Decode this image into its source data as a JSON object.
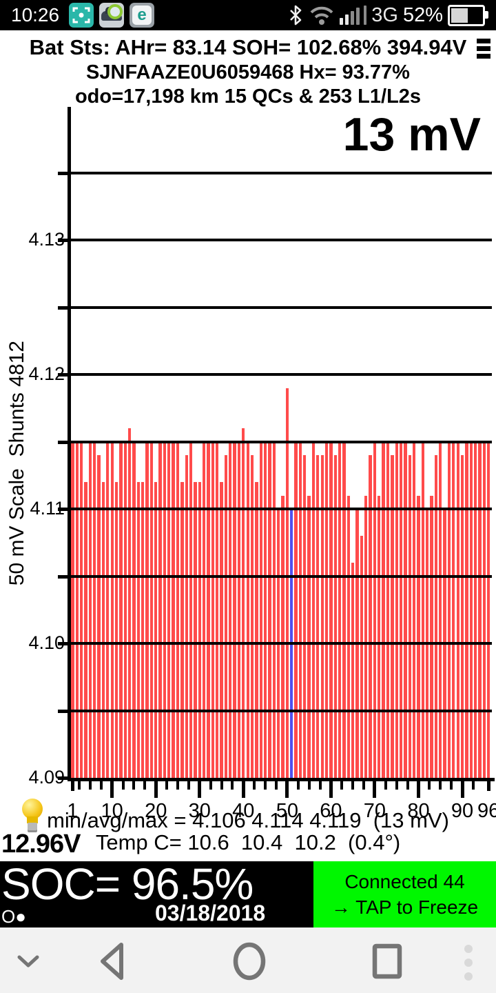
{
  "status_bar": {
    "time": "10:26",
    "app_icons": [
      "screen-capture-icon",
      "leafspy-app-icon",
      "eset-antivirus-icon"
    ],
    "eset_letter": "e",
    "system_icons": [
      "bluetooth-icon",
      "wifi-icon",
      "signal-strength-icon"
    ],
    "network_label": "3G",
    "battery_percent": "52%",
    "battery_level": 0.52
  },
  "header": {
    "line1": "Bat Sts: AHr= 83.14 SOH= 102.68% 394.94V",
    "line2": "SJNFAAZE0U6059468   Hx= 93.77%",
    "line3": "odo=17,198 km  15 QCs & 253 L1/L2s",
    "menu_icon": "hamburger-menu-icon"
  },
  "chart_data": {
    "type": "bar",
    "title": "13 mV",
    "ylabel": "50 mV Scale  Shunts 4812",
    "xlabel": "",
    "x_description": "cell pair number 1-96",
    "ylim": [
      4.09,
      4.14
    ],
    "grid_step_volts": 0.005,
    "grid_on": true,
    "y_ticks": [
      {
        "label": "4.13",
        "value": 4.13
      },
      {
        "label": "4.12",
        "value": 4.12
      },
      {
        "label": "4.11",
        "value": 4.11
      },
      {
        "label": "4.10",
        "value": 4.1
      },
      {
        "label": "4.09",
        "value": 4.09
      }
    ],
    "x_ticks": [
      {
        "label": "1",
        "cell": 1
      },
      {
        "label": "10",
        "cell": 10
      },
      {
        "label": "20",
        "cell": 20
      },
      {
        "label": "30",
        "cell": 30
      },
      {
        "label": "40",
        "cell": 40
      },
      {
        "label": "50",
        "cell": 50
      },
      {
        "label": "60",
        "cell": 60
      },
      {
        "label": "70",
        "cell": 70
      },
      {
        "label": "80",
        "cell": 80
      },
      {
        "label": "90",
        "cell": 90
      },
      {
        "label": "96",
        "cell": 96
      }
    ],
    "values": [
      4.115,
      4.115,
      4.115,
      4.112,
      4.115,
      4.115,
      4.114,
      4.112,
      4.115,
      4.115,
      4.112,
      4.115,
      4.115,
      4.116,
      4.115,
      4.112,
      4.112,
      4.115,
      4.115,
      4.112,
      4.115,
      4.115,
      4.115,
      4.115,
      4.115,
      4.112,
      4.114,
      4.115,
      4.112,
      4.112,
      4.115,
      4.115,
      4.115,
      4.115,
      4.112,
      4.114,
      4.115,
      4.115,
      4.115,
      4.116,
      4.115,
      4.114,
      4.112,
      4.115,
      4.115,
      4.115,
      4.115,
      4.11,
      4.111,
      4.119,
      4.11,
      4.115,
      4.115,
      4.114,
      4.111,
      4.115,
      4.114,
      4.114,
      4.115,
      4.115,
      4.114,
      4.115,
      4.115,
      4.111,
      4.106,
      4.11,
      4.108,
      4.111,
      4.114,
      4.115,
      4.111,
      4.115,
      4.115,
      4.114,
      4.115,
      4.115,
      4.115,
      4.114,
      4.115,
      4.111,
      4.115,
      4.11,
      4.111,
      4.114,
      4.115,
      4.11,
      4.115,
      4.115,
      4.115,
      4.114,
      4.115,
      4.115,
      4.115,
      4.115,
      4.115,
      4.115
    ],
    "bar_color": "#ff4b4b",
    "highlight_bar": {
      "index_1based": 51,
      "color": "#5150ee",
      "meaning": "shunt-on cell"
    },
    "stats": {
      "min": 4.106,
      "avg": 4.114,
      "max": 4.119,
      "spread_mv": 13
    }
  },
  "footer": {
    "stats_line": "min/avg/max = 4.106 4.114 4.119  (13 mV)",
    "temp_line": "Temp C= 10.6  10.4  10.2  (0.4°)",
    "aux_voltage": "12.96V",
    "bulb_icon": "lightbulb-icon"
  },
  "soc_bar": {
    "soc_text": "SOC= 96.5%",
    "indicator": "O●",
    "date": "03/18/2018"
  },
  "connect_button": {
    "line1": "Connected 44",
    "line2": "→ TAP to Freeze",
    "color": "#00f700"
  },
  "nav_bar": {
    "icons": [
      "chevron-down-icon",
      "back-icon",
      "home-icon",
      "recents-icon",
      "overflow-dots-icon"
    ]
  }
}
